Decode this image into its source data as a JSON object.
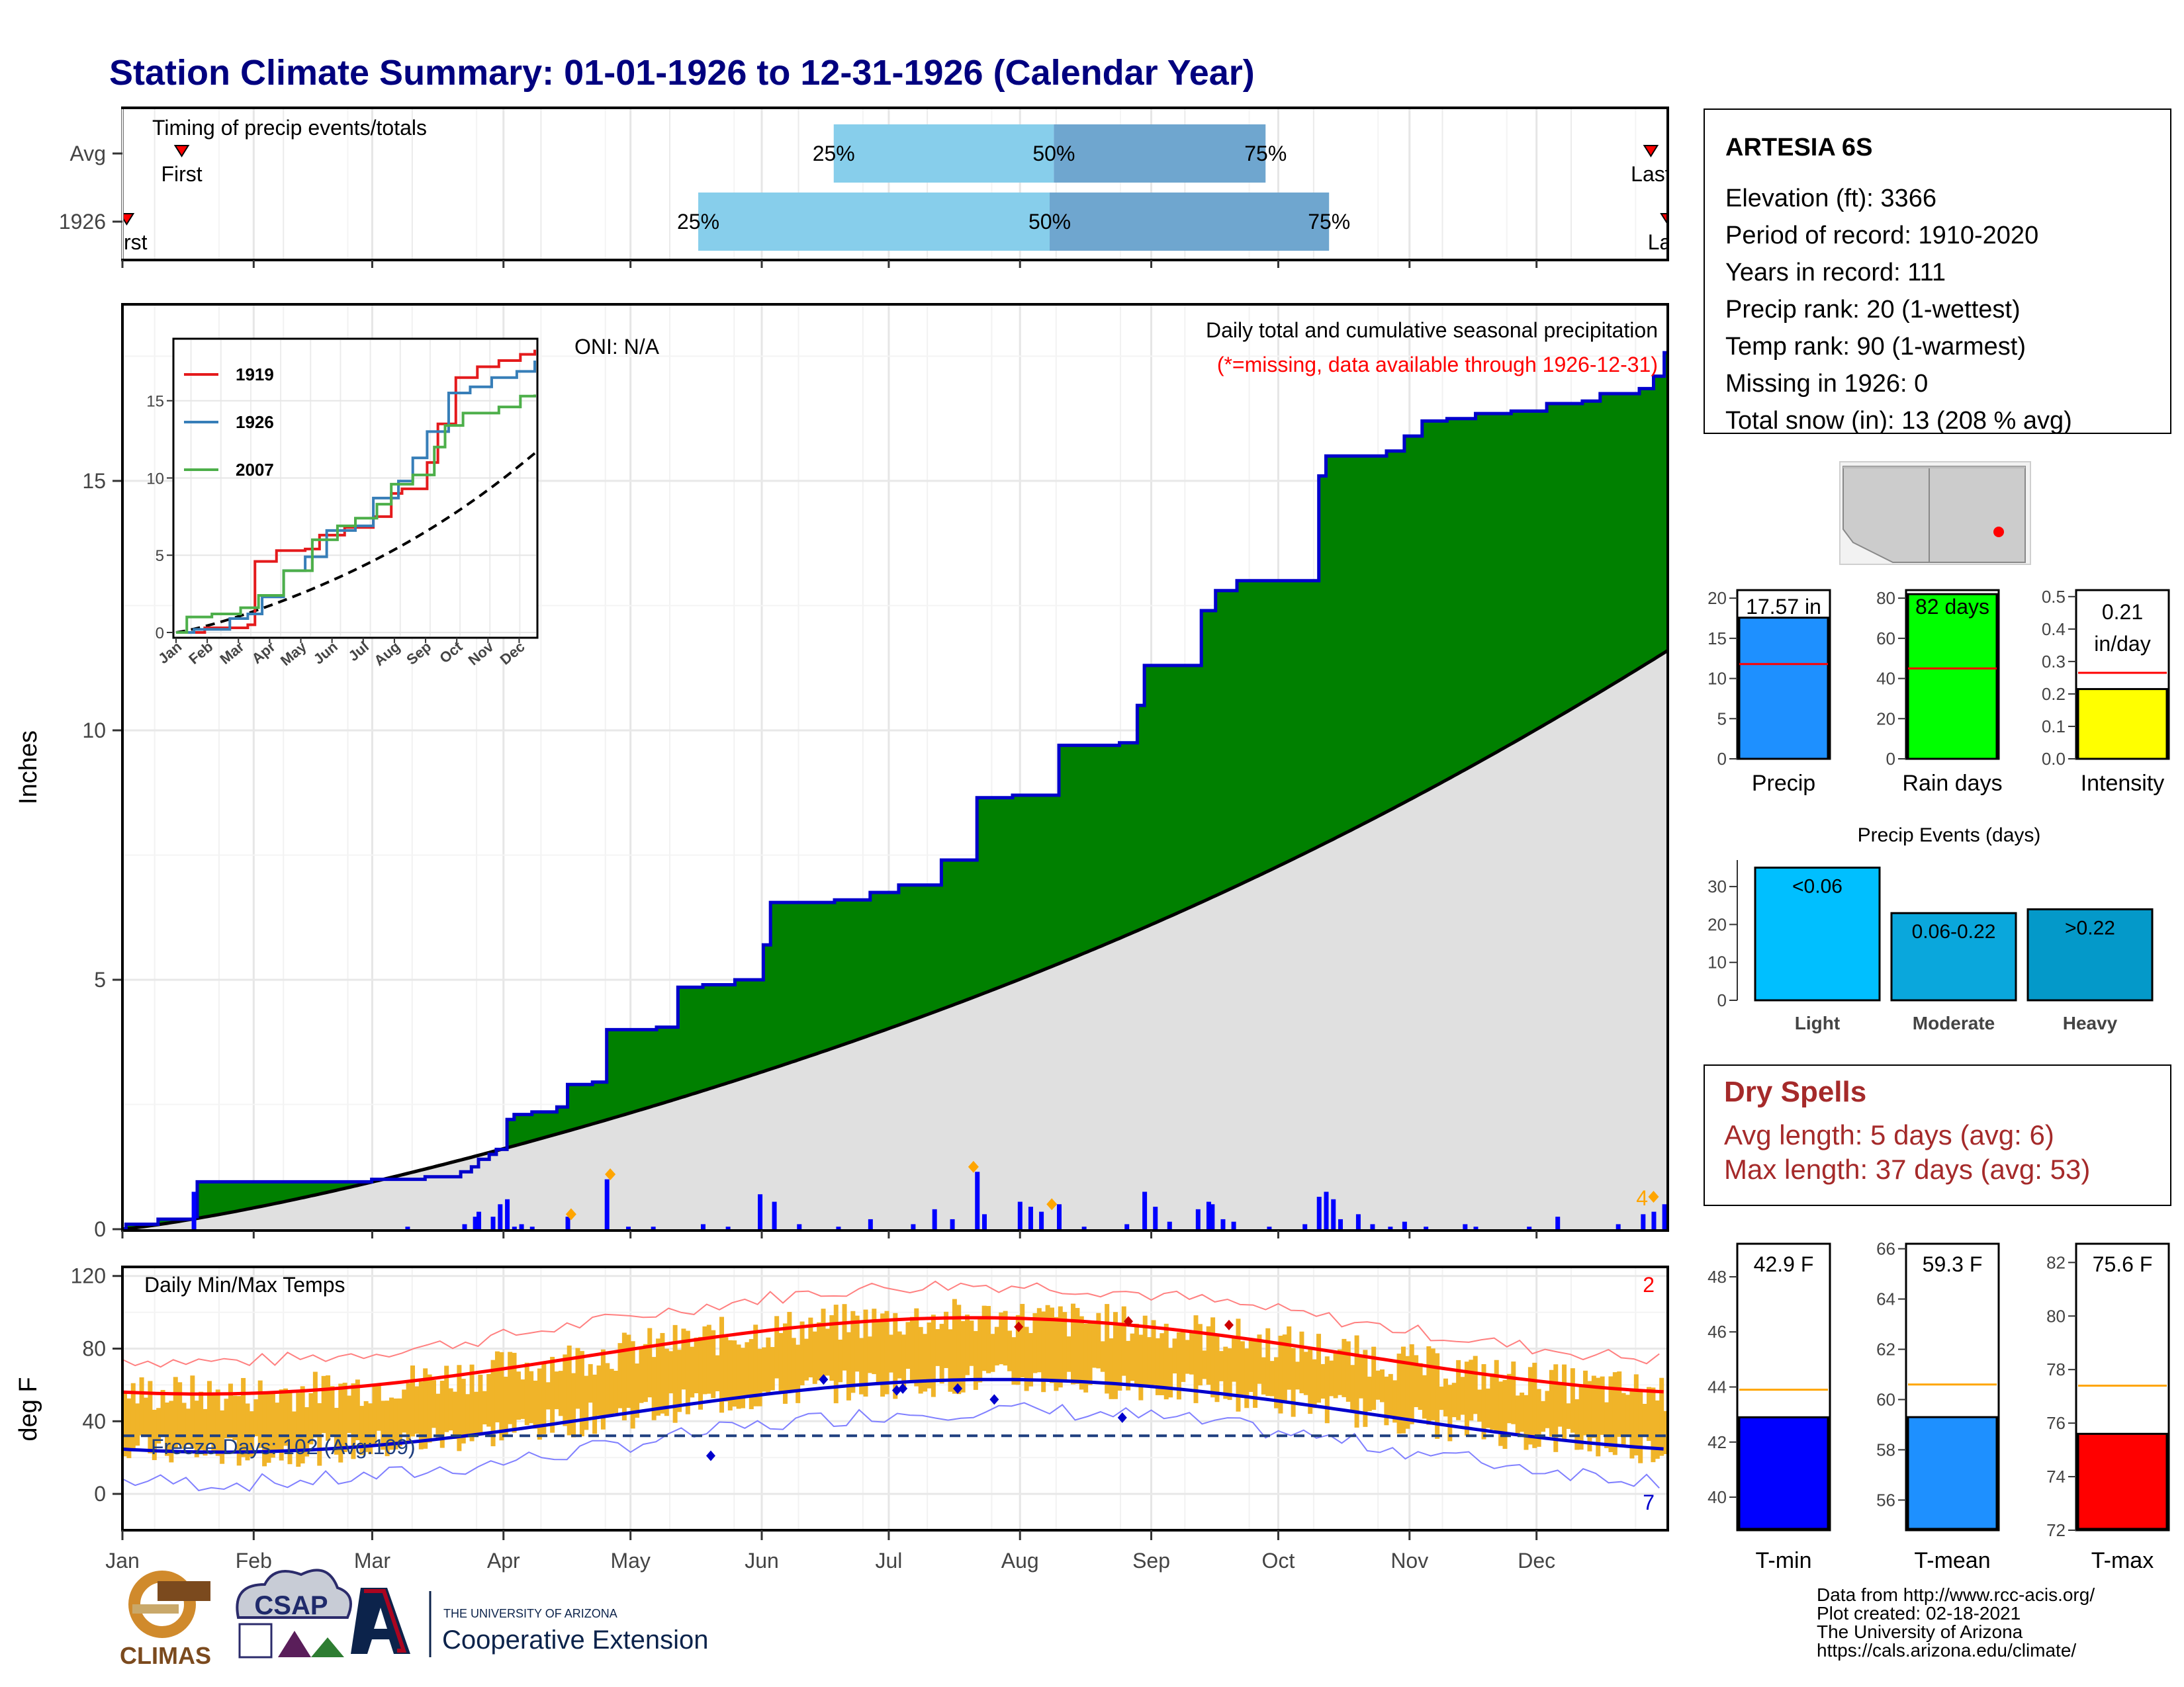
{
  "title": "Station Climate Summary: 01-01-1926 to 12-31-1926 (Calendar Year)",
  "colors": {
    "title": "#00007f",
    "precip_cum": "#008000",
    "precip_line": "#0000cc",
    "normal_fill": "#e0e0e0",
    "temp_bar": "#f0b429",
    "tmax_line": "#ff0000",
    "tmin_line": "#0000cc",
    "dry_text": "#a52a2a"
  },
  "timing": {
    "label": "Timing of precip events/totals",
    "rows": [
      {
        "name": "Avg",
        "first_label": "First",
        "last_label": "Last",
        "first_day": 14,
        "last_day": 361,
        "p25": 168,
        "p50": 220,
        "p75": 270
      },
      {
        "name": "1926",
        "first_label": "First",
        "last_label": "Last",
        "first_day": 1,
        "last_day": 365,
        "p25": 136,
        "p50": 219,
        "p75": 285
      }
    ],
    "pct_labels": [
      "25%",
      "50%",
      "75%"
    ]
  },
  "precip": {
    "y_label": "Inches",
    "oni": "ONI: N/A",
    "legend_title": "Daily total and cumulative seasonal precipitation",
    "missing_note": "(*=missing, data available through 1926-12-31)",
    "corner_count": "4",
    "ylim": [
      0,
      18.5
    ],
    "yticks": [
      0,
      5,
      10,
      15
    ],
    "cumulative_steps": [
      [
        1,
        0.1
      ],
      [
        10,
        0.2
      ],
      [
        20,
        0.25
      ],
      [
        21,
        0.95
      ],
      [
        50,
        0.95
      ],
      [
        60,
        0.95
      ],
      [
        70,
        1.0
      ],
      [
        85,
        1.05
      ],
      [
        95,
        1.15
      ],
      [
        98,
        1.25
      ],
      [
        100,
        1.4
      ],
      [
        103,
        1.5
      ],
      [
        105,
        1.6
      ],
      [
        108,
        2.2
      ],
      [
        110,
        2.3
      ],
      [
        115,
        2.35
      ],
      [
        122,
        2.45
      ],
      [
        125,
        2.9
      ],
      [
        132,
        2.95
      ],
      [
        136,
        4.0
      ],
      [
        150,
        4.05
      ],
      [
        156,
        4.85
      ],
      [
        163,
        4.9
      ],
      [
        172,
        5.0
      ],
      [
        180,
        5.7
      ],
      [
        182,
        6.55
      ],
      [
        190,
        6.55
      ],
      [
        200,
        6.6
      ],
      [
        210,
        6.75
      ],
      [
        218,
        6.9
      ],
      [
        230,
        7.4
      ],
      [
        233,
        7.4
      ],
      [
        240,
        8.65
      ],
      [
        250,
        8.7
      ],
      [
        257,
        8.7
      ],
      [
        263,
        9.7
      ],
      [
        280,
        9.75
      ],
      [
        285,
        10.5
      ],
      [
        287,
        11.3
      ],
      [
        300,
        11.3
      ],
      [
        303,
        12.4
      ],
      [
        307,
        12.8
      ],
      [
        310,
        12.8
      ],
      [
        313,
        13.0
      ],
      [
        330,
        13.0
      ],
      [
        336,
        15.1
      ],
      [
        338,
        15.5
      ],
      [
        350,
        15.5
      ],
      [
        355,
        15.6
      ],
      [
        360,
        15.9
      ],
      [
        365,
        16.2
      ],
      [
        372,
        16.25
      ],
      [
        380,
        16.35
      ],
      [
        390,
        16.4
      ],
      [
        400,
        16.55
      ],
      [
        410,
        16.6
      ],
      [
        415,
        16.75
      ],
      [
        420,
        16.75
      ],
      [
        426,
        16.85
      ],
      [
        430,
        17.1
      ],
      [
        433,
        17.57
      ]
    ],
    "daily_bars": [
      [
        20,
        0.75
      ],
      [
        80,
        0.05
      ],
      [
        96,
        0.1
      ],
      [
        99,
        0.25
      ],
      [
        100,
        0.35
      ],
      [
        104,
        0.25
      ],
      [
        106,
        0.5
      ],
      [
        108,
        0.6
      ],
      [
        110,
        0.05
      ],
      [
        112,
        0.1
      ],
      [
        115,
        0.05
      ],
      [
        125,
        0.25
      ],
      [
        136,
        1.0
      ],
      [
        142,
        0.05
      ],
      [
        149,
        0.05
      ],
      [
        163,
        0.1
      ],
      [
        170,
        0.05
      ],
      [
        179,
        0.7
      ],
      [
        183,
        0.55
      ],
      [
        190,
        0.1
      ],
      [
        201,
        0.05
      ],
      [
        210,
        0.2
      ],
      [
        222,
        0.1
      ],
      [
        228,
        0.4
      ],
      [
        233,
        0.2
      ],
      [
        240,
        1.15
      ],
      [
        242,
        0.3
      ],
      [
        252,
        0.55
      ],
      [
        255,
        0.45
      ],
      [
        258,
        0.35
      ],
      [
        263,
        0.5
      ],
      [
        270,
        0.05
      ],
      [
        282,
        0.1
      ],
      [
        287,
        0.75
      ],
      [
        290,
        0.45
      ],
      [
        294,
        0.15
      ],
      [
        302,
        0.4
      ],
      [
        305,
        0.55
      ],
      [
        306,
        0.5
      ],
      [
        309,
        0.2
      ],
      [
        312,
        0.15
      ],
      [
        322,
        0.05
      ],
      [
        332,
        0.1
      ],
      [
        336,
        0.65
      ],
      [
        338,
        0.75
      ],
      [
        340,
        0.6
      ],
      [
        342,
        0.2
      ],
      [
        347,
        0.3
      ],
      [
        351,
        0.1
      ],
      [
        356,
        0.05
      ],
      [
        360,
        0.15
      ],
      [
        366,
        0.05
      ],
      [
        377,
        0.1
      ],
      [
        380,
        0.05
      ],
      [
        395,
        0.05
      ],
      [
        403,
        0.25
      ],
      [
        420,
        0.1
      ],
      [
        427,
        0.3
      ],
      [
        430,
        0.35
      ],
      [
        433,
        0.5
      ]
    ],
    "orange_markers": [
      [
        126,
        0.3
      ],
      [
        137,
        1.1
      ],
      [
        239,
        1.25
      ],
      [
        261,
        0.5
      ],
      [
        430,
        0.65
      ]
    ],
    "normal_cum_end": 11.6
  },
  "inset": {
    "title_hidden": "",
    "yticks": [
      0,
      5,
      10,
      15
    ],
    "months": [
      "Jan",
      "Feb",
      "Mar",
      "Apr",
      "May",
      "Jun",
      "Jul",
      "Aug",
      "Sep",
      "Oct",
      "Nov",
      "Dec"
    ],
    "series": [
      {
        "name": "1919",
        "color": "#e41a1c"
      },
      {
        "name": "1926",
        "color": "#377eb8"
      },
      {
        "name": "2007",
        "color": "#4daf4a"
      }
    ],
    "ylim": [
      0,
      18.5
    ]
  },
  "temp": {
    "y_label": "deg F",
    "label": "Daily Min/Max Temps",
    "freeze": "Freeze Days: 102 (Avg:109)",
    "corner_top": "2",
    "corner_bottom": "7",
    "yticks": [
      0,
      40,
      80,
      120
    ],
    "ylim": [
      -20,
      125
    ],
    "freeze_line": 32
  },
  "x_months": [
    "Jan",
    "Feb",
    "Mar",
    "Apr",
    "May",
    "Jun",
    "Jul",
    "Aug",
    "Sep",
    "Oct",
    "Nov",
    "Dec"
  ],
  "station": {
    "name": "ARTESIA 6S",
    "lines": [
      "Elevation (ft): 3366",
      "Period of record: 1910-2020",
      "Years in record: 111",
      "Precip rank: 20 (1-wettest)",
      "Temp rank: 90 (1-warmest)",
      "Missing in 1926: 0",
      "Total snow (in): 13 (208 % avg)"
    ]
  },
  "summary_bars": [
    {
      "label": "Precip",
      "value_label": "17.57 in",
      "value": 17.57,
      "avg": 11.8,
      "ymax": 21,
      "yticks": [
        0,
        5,
        10,
        15,
        20
      ],
      "color": "#1e90ff"
    },
    {
      "label": "Rain days",
      "value_label": "82 days",
      "value": 82,
      "avg": 45,
      "ymax": 84,
      "yticks": [
        0,
        20,
        40,
        60,
        80
      ],
      "color": "#00ff00"
    },
    {
      "label": "Intensity",
      "value_label": "0.21 in/day",
      "value_l1": "0.21",
      "value_l2": "in/day",
      "value": 0.215,
      "avg": 0.265,
      "ymax": 0.52,
      "yticks": [
        "0.0",
        "0.1",
        "0.2",
        "0.3",
        "0.4",
        "0.5"
      ],
      "color": "#ffff00"
    }
  ],
  "events": {
    "title": "Precip Events (days)",
    "categories": [
      "Light",
      "Moderate",
      "Heavy"
    ],
    "labels": [
      "<0.06",
      "0.06-0.22",
      ">0.22"
    ],
    "values": [
      35,
      23,
      24
    ],
    "colors": [
      "#00bfff",
      "#0aa7dc",
      "#0499c9"
    ],
    "yticks": [
      0,
      10,
      20,
      30
    ],
    "ymax": 37
  },
  "dry_spells": {
    "title": "Dry Spells",
    "avg": "Avg length: 5 days (avg: 6)",
    "max": "Max length: 37 days (avg: 53)"
  },
  "temp_bars": [
    {
      "label": "T-min",
      "value_label": "42.9 F",
      "value": 42.9,
      "avg": 43.9,
      "ymin": 38.8,
      "ymax": 49.2,
      "yticks": [
        40,
        42,
        44,
        46,
        48
      ],
      "color": "#0000ff"
    },
    {
      "label": "T-mean",
      "value_label": "59.3 F",
      "value": 59.3,
      "avg": 60.6,
      "ymin": 54.8,
      "ymax": 66.2,
      "yticks": [
        56,
        58,
        60,
        62,
        64,
        66
      ],
      "color": "#1e90ff"
    },
    {
      "label": "T-max",
      "value_label": "75.6 F",
      "value": 75.6,
      "avg": 77.4,
      "ymin": 72.0,
      "ymax": 82.7,
      "yticks": [
        72,
        74,
        76,
        78,
        80,
        82
      ],
      "color": "#ff0000"
    }
  ],
  "credits": [
    "Data from http://www.rcc-acis.org/",
    "Plot created: 02-18-2021",
    "The University of Arizona",
    "https://cals.arizona.edu/climate/"
  ],
  "logos": {
    "climas": "CLIMAS",
    "csap": "CSAP",
    "ua_top": "THE UNIVERSITY OF ARIZONA",
    "ua_main": "Cooperative Extension"
  }
}
